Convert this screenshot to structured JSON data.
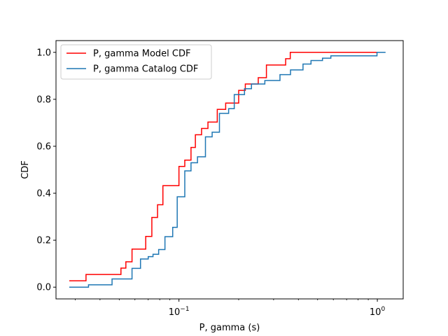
{
  "chart_data": {
    "type": "line",
    "step": "post",
    "xscale": "log",
    "xlabel": "P, gamma (s)",
    "ylabel": "CDF",
    "xlim": [
      0.024,
      1.35
    ],
    "ylim": [
      -0.05,
      1.05
    ],
    "xticks": [
      {
        "value": 0.1,
        "base": "10",
        "exp": "−1"
      },
      {
        "value": 1.0,
        "base": "10",
        "exp": "0"
      }
    ],
    "yticks": [
      "0.0",
      "0.2",
      "0.4",
      "0.6",
      "0.8",
      "1.0"
    ],
    "grid": false,
    "legend_position": "upper-left",
    "series": [
      {
        "name": "P, gamma Model CDF",
        "color": "#ff0000",
        "points": [
          [
            0.028,
            0.027
          ],
          [
            0.034,
            0.054
          ],
          [
            0.051,
            0.081
          ],
          [
            0.054,
            0.108
          ],
          [
            0.058,
            0.162
          ],
          [
            0.068,
            0.216
          ],
          [
            0.073,
            0.297
          ],
          [
            0.078,
            0.351
          ],
          [
            0.083,
            0.432
          ],
          [
            0.1,
            0.514
          ],
          [
            0.107,
            0.541
          ],
          [
            0.115,
            0.595
          ],
          [
            0.121,
            0.649
          ],
          [
            0.13,
            0.676
          ],
          [
            0.14,
            0.703
          ],
          [
            0.156,
            0.757
          ],
          [
            0.172,
            0.784
          ],
          [
            0.2,
            0.838
          ],
          [
            0.216,
            0.865
          ],
          [
            0.251,
            0.892
          ],
          [
            0.276,
            0.946
          ],
          [
            0.345,
            0.973
          ],
          [
            0.364,
            1.0
          ],
          [
            1.0,
            1.0
          ]
        ]
      },
      {
        "name": "P, gamma Catalog CDF",
        "color": "#1f77b4",
        "points": [
          [
            0.028,
            0.0
          ],
          [
            0.035,
            0.01
          ],
          [
            0.046,
            0.035
          ],
          [
            0.058,
            0.08
          ],
          [
            0.064,
            0.12
          ],
          [
            0.07,
            0.13
          ],
          [
            0.074,
            0.14
          ],
          [
            0.079,
            0.16
          ],
          [
            0.085,
            0.215
          ],
          [
            0.093,
            0.255
          ],
          [
            0.098,
            0.385
          ],
          [
            0.107,
            0.495
          ],
          [
            0.115,
            0.53
          ],
          [
            0.124,
            0.555
          ],
          [
            0.136,
            0.64
          ],
          [
            0.147,
            0.66
          ],
          [
            0.16,
            0.74
          ],
          [
            0.178,
            0.76
          ],
          [
            0.19,
            0.82
          ],
          [
            0.214,
            0.845
          ],
          [
            0.232,
            0.865
          ],
          [
            0.271,
            0.88
          ],
          [
            0.323,
            0.905
          ],
          [
            0.365,
            0.925
          ],
          [
            0.422,
            0.95
          ],
          [
            0.463,
            0.965
          ],
          [
            0.529,
            0.975
          ],
          [
            0.583,
            0.985
          ],
          [
            0.996,
            1.0
          ],
          [
            1.1,
            1.0
          ]
        ]
      }
    ]
  }
}
